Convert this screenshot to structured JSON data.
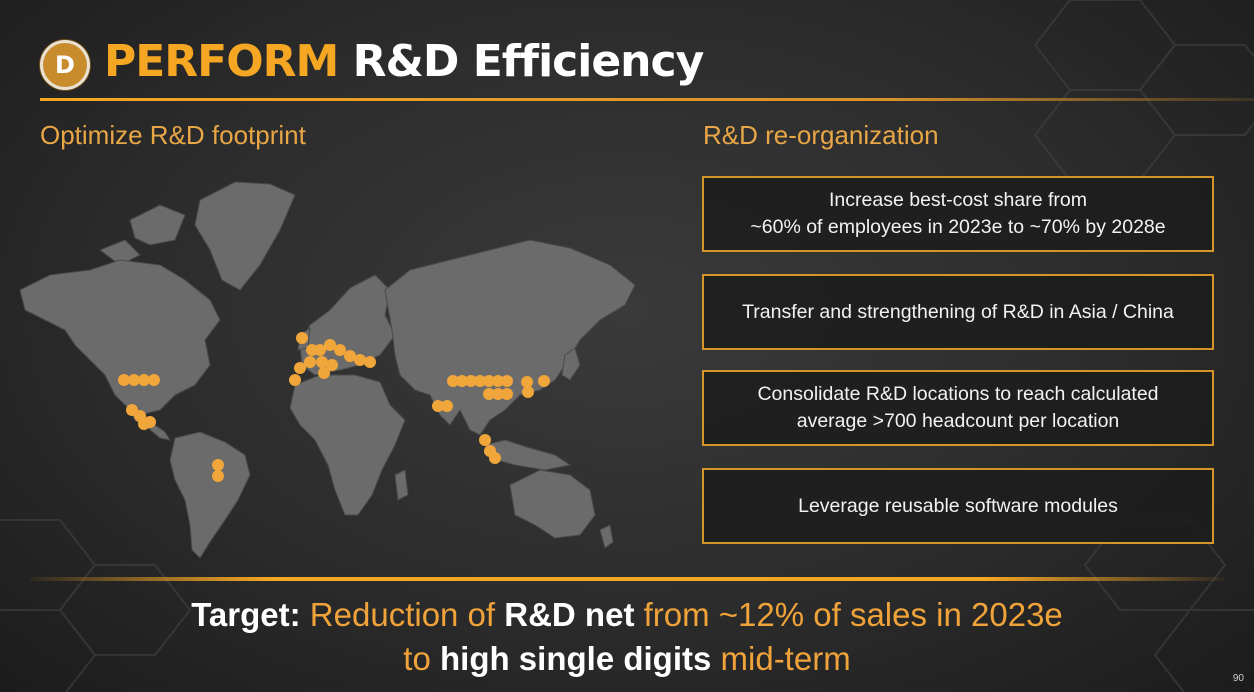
{
  "header": {
    "badge_letter": "D",
    "title_highlight": "PERFORM",
    "title_rest": "R&D Efficiency"
  },
  "left": {
    "heading": "Optimize R&D footprint"
  },
  "right": {
    "heading": "R&D re-organization",
    "boxes": [
      "Increase best-cost share from\n~60% of employees in 2023e to ~70% by 2028e",
      "Transfer and strengthening of R&D in Asia / China",
      "Consolidate R&D locations to reach calculated\naverage >700 headcount per location",
      "Leverage reusable software modules"
    ]
  },
  "target": {
    "label": "Target:",
    "p1": "Reduction of",
    "b1": "R&D net",
    "p2": "from ~12% of sales in 2023e",
    "p3": "to",
    "b2": "high single digits",
    "p4": "mid-term"
  },
  "page_number": "90",
  "colors": {
    "accent": "#f5a623",
    "map_land": "#6b6b6b",
    "dot": "#f0a63a"
  },
  "map": {
    "marker_icon": "location-dot-icon"
  }
}
